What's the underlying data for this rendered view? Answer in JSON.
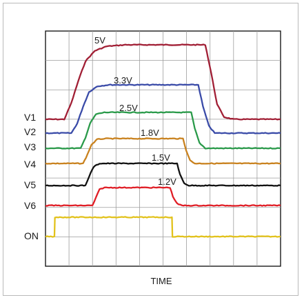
{
  "chart_data": {
    "type": "line",
    "xlabel": "TIME",
    "grid": true,
    "grid_divisions": {
      "x": 10,
      "y": 8
    },
    "x_range": [
      0,
      10
    ],
    "series": [
      {
        "name": "V1",
        "voltage_label": "5V",
        "color": "#a11f35",
        "points": [
          [
            0,
            0
          ],
          [
            0.8,
            0
          ],
          [
            1.1,
            0.22
          ],
          [
            1.4,
            0.52
          ],
          [
            1.7,
            0.78
          ],
          [
            2.1,
            0.92
          ],
          [
            2.6,
            0.98
          ],
          [
            3.4,
            1
          ],
          [
            6.8,
            1
          ],
          [
            7.05,
            0.62
          ],
          [
            7.3,
            0.2
          ],
          [
            7.6,
            0.03
          ],
          [
            8,
            0
          ],
          [
            10,
            0
          ]
        ]
      },
      {
        "name": "V2",
        "voltage_label": "3.3V",
        "color": "#3a4ba8",
        "points": [
          [
            0,
            0
          ],
          [
            1.1,
            0
          ],
          [
            1.35,
            0.2
          ],
          [
            1.6,
            0.55
          ],
          [
            1.85,
            0.85
          ],
          [
            2.2,
            0.97
          ],
          [
            2.7,
            1
          ],
          [
            6.5,
            1
          ],
          [
            6.7,
            0.55
          ],
          [
            6.95,
            0.15
          ],
          [
            7.2,
            0
          ],
          [
            10,
            0
          ]
        ]
      },
      {
        "name": "V3",
        "voltage_label": "2.5V",
        "color": "#2a9a4a",
        "points": [
          [
            0,
            0
          ],
          [
            1.5,
            0
          ],
          [
            1.7,
            0.3
          ],
          [
            1.9,
            0.7
          ],
          [
            2.15,
            0.95
          ],
          [
            2.5,
            1
          ],
          [
            6.2,
            1
          ],
          [
            6.35,
            0.55
          ],
          [
            6.55,
            0.15
          ],
          [
            6.8,
            0
          ],
          [
            10,
            0
          ]
        ]
      },
      {
        "name": "V4",
        "voltage_label": "1.8V",
        "color": "#c9821f",
        "points": [
          [
            0,
            0
          ],
          [
            1.6,
            0
          ],
          [
            1.78,
            0.35
          ],
          [
            1.95,
            0.75
          ],
          [
            2.2,
            0.97
          ],
          [
            2.5,
            1
          ],
          [
            5.85,
            1
          ],
          [
            5.98,
            0.55
          ],
          [
            6.15,
            0.12
          ],
          [
            6.35,
            0
          ],
          [
            10,
            0
          ]
        ]
      },
      {
        "name": "V5",
        "voltage_label": "1.5V",
        "color": "#111111",
        "points": [
          [
            0,
            0
          ],
          [
            1.7,
            0
          ],
          [
            1.85,
            0.4
          ],
          [
            2.05,
            0.85
          ],
          [
            2.3,
            1
          ],
          [
            5.6,
            1
          ],
          [
            5.72,
            0.5
          ],
          [
            5.9,
            0.1
          ],
          [
            6.1,
            0
          ],
          [
            10,
            0
          ]
        ]
      },
      {
        "name": "V6",
        "voltage_label": "1.2V",
        "color": "#e01e26",
        "points": [
          [
            0,
            0
          ],
          [
            2.0,
            0
          ],
          [
            2.15,
            0.45
          ],
          [
            2.3,
            0.9
          ],
          [
            2.5,
            1
          ],
          [
            5.3,
            1
          ],
          [
            5.42,
            0.5
          ],
          [
            5.6,
            0.1
          ],
          [
            5.8,
            0
          ],
          [
            10,
            0
          ]
        ]
      },
      {
        "name": "ON",
        "voltage_label": "",
        "color": "#e2c21c",
        "points": [
          [
            0,
            0
          ],
          [
            0.38,
            0
          ],
          [
            0.4,
            1
          ],
          [
            5.38,
            1
          ],
          [
            5.4,
            0
          ],
          [
            10,
            0
          ]
        ]
      }
    ]
  }
}
